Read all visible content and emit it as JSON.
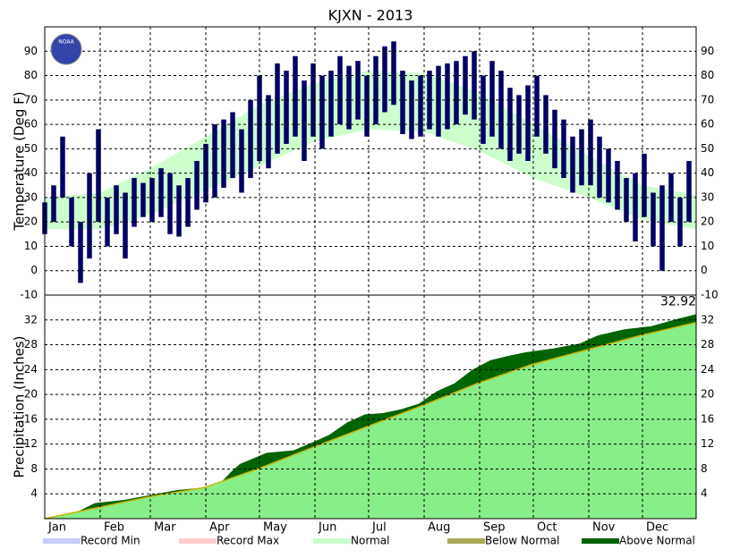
{
  "logo": "NOAA",
  "chart_data": [
    {
      "type": "range",
      "title": "KJXN - 2013",
      "y_label": "Temperature (Deg F)",
      "xlim": [
        1,
        365
      ],
      "xticks": [
        {
          "value": 1,
          "label": "Jan"
        },
        {
          "value": 32,
          "label": "Feb"
        },
        {
          "value": 60,
          "label": "Mar"
        },
        {
          "value": 91,
          "label": "Apr"
        },
        {
          "value": 121,
          "label": "May"
        },
        {
          "value": 152,
          "label": "Jun"
        },
        {
          "value": 182,
          "label": "Jul"
        },
        {
          "value": 213,
          "label": "Aug"
        },
        {
          "value": 244,
          "label": "Sep"
        },
        {
          "value": 274,
          "label": "Oct"
        },
        {
          "value": 305,
          "label": "Nov"
        },
        {
          "value": 335,
          "label": "Dec"
        }
      ],
      "ylim": [
        -10,
        100
      ],
      "yticks": [
        -10,
        0,
        10,
        20,
        30,
        40,
        50,
        60,
        70,
        80,
        90
      ],
      "grid": true,
      "color": "#000066",
      "normal_color": "#ccffcc",
      "x": [
        1,
        6,
        11,
        16,
        21,
        26,
        31,
        36,
        41,
        46,
        51,
        56,
        61,
        66,
        71,
        76,
        81,
        86,
        91,
        96,
        101,
        106,
        111,
        116,
        121,
        126,
        131,
        136,
        141,
        146,
        151,
        156,
        161,
        166,
        171,
        176,
        181,
        186,
        191,
        196,
        201,
        206,
        211,
        216,
        221,
        226,
        231,
        236,
        241,
        246,
        251,
        256,
        261,
        266,
        271,
        276,
        281,
        286,
        291,
        296,
        301,
        306,
        311,
        316,
        321,
        326,
        331,
        336,
        341,
        346,
        351,
        356,
        361
      ],
      "highs": [
        28,
        35,
        55,
        30,
        20,
        40,
        58,
        30,
        35,
        32,
        38,
        36,
        38,
        42,
        40,
        35,
        38,
        45,
        52,
        60,
        62,
        65,
        58,
        70,
        80,
        72,
        85,
        82,
        88,
        78,
        85,
        80,
        82,
        88,
        84,
        86,
        80,
        88,
        92,
        94,
        82,
        78,
        80,
        82,
        84,
        85,
        86,
        88,
        90,
        80,
        86,
        82,
        75,
        72,
        76,
        80,
        72,
        66,
        62,
        55,
        58,
        62,
        55,
        50,
        45,
        38,
        40,
        48,
        32,
        35,
        40,
        30,
        45
      ],
      "lows": [
        15,
        20,
        30,
        10,
        -5,
        5,
        20,
        10,
        15,
        5,
        18,
        22,
        20,
        22,
        15,
        14,
        18,
        25,
        28,
        30,
        34,
        38,
        32,
        38,
        45,
        42,
        48,
        52,
        55,
        45,
        55,
        50,
        55,
        60,
        58,
        62,
        55,
        60,
        65,
        68,
        56,
        54,
        55,
        58,
        55,
        58,
        60,
        64,
        62,
        52,
        55,
        50,
        45,
        48,
        45,
        55,
        48,
        42,
        38,
        32,
        35,
        35,
        30,
        28,
        25,
        20,
        12,
        22,
        10,
        0,
        20,
        10,
        20
      ],
      "normal_x": [
        1,
        32,
        60,
        91,
        121,
        152,
        182,
        213,
        244,
        274,
        305,
        335,
        365
      ],
      "normal_high": [
        30,
        32,
        42,
        55,
        68,
        77,
        82,
        81,
        73,
        60,
        47,
        35,
        31
      ],
      "normal_low": [
        17,
        17,
        23,
        33,
        43,
        53,
        58,
        57,
        49,
        38,
        30,
        21,
        17
      ]
    },
    {
      "type": "area",
      "y_label": "Precipitation (Inches)",
      "xlim": [
        1,
        365
      ],
      "xticks": [
        {
          "value": 1,
          "label": "Jan"
        },
        {
          "value": 32,
          "label": "Feb"
        },
        {
          "value": 60,
          "label": "Mar"
        },
        {
          "value": 91,
          "label": "Apr"
        },
        {
          "value": 121,
          "label": "May"
        },
        {
          "value": 152,
          "label": "Jun"
        },
        {
          "value": 182,
          "label": "Jul"
        },
        {
          "value": 213,
          "label": "Aug"
        },
        {
          "value": 244,
          "label": "Sep"
        },
        {
          "value": 274,
          "label": "Oct"
        },
        {
          "value": 305,
          "label": "Nov"
        },
        {
          "value": 335,
          "label": "Dec"
        }
      ],
      "ylim": [
        0,
        36
      ],
      "yticks": [
        4,
        8,
        12,
        16,
        20,
        24,
        28,
        32
      ],
      "grid": true,
      "color": "#006400",
      "normal_color": "#88ee88",
      "normal_line_color": "#c8b400",
      "x": [
        1,
        15,
        29,
        45,
        60,
        75,
        90,
        100,
        105,
        110,
        125,
        140,
        150,
        160,
        170,
        180,
        190,
        200,
        210,
        220,
        230,
        240,
        250,
        260,
        270,
        285,
        300,
        310,
        325,
        340,
        355,
        365
      ],
      "values": [
        0,
        0.5,
        2.5,
        3.0,
        3.8,
        4.6,
        5.0,
        6.0,
        7.5,
        8.8,
        10.6,
        11.0,
        12.2,
        13.5,
        15.5,
        16.8,
        17.0,
        17.6,
        18.5,
        20.5,
        21.8,
        24.0,
        25.5,
        26.2,
        26.8,
        27.4,
        28.2,
        29.5,
        30.5,
        31.0,
        32.2,
        32.92
      ],
      "value_labels": {
        "31": "32.92"
      },
      "normal_x": [
        1,
        31,
        59,
        90,
        120,
        151,
        181,
        212,
        243,
        273,
        304,
        334,
        365
      ],
      "normal_values": [
        0,
        1.8,
        3.5,
        5.0,
        8.0,
        11.5,
        14.8,
        18.2,
        21.8,
        24.8,
        27.2,
        29.5,
        31.6
      ],
      "legend": [
        {
          "name": "Record Min",
          "color": "#c8ccff"
        },
        {
          "name": "Record Max",
          "color": "#ffcccc"
        },
        {
          "name": "Normal",
          "color": "#ccffcc"
        },
        {
          "name": "Below Normal",
          "color": "#a9a957"
        },
        {
          "name": "Above Normal",
          "color": "#006400"
        }
      ]
    }
  ]
}
